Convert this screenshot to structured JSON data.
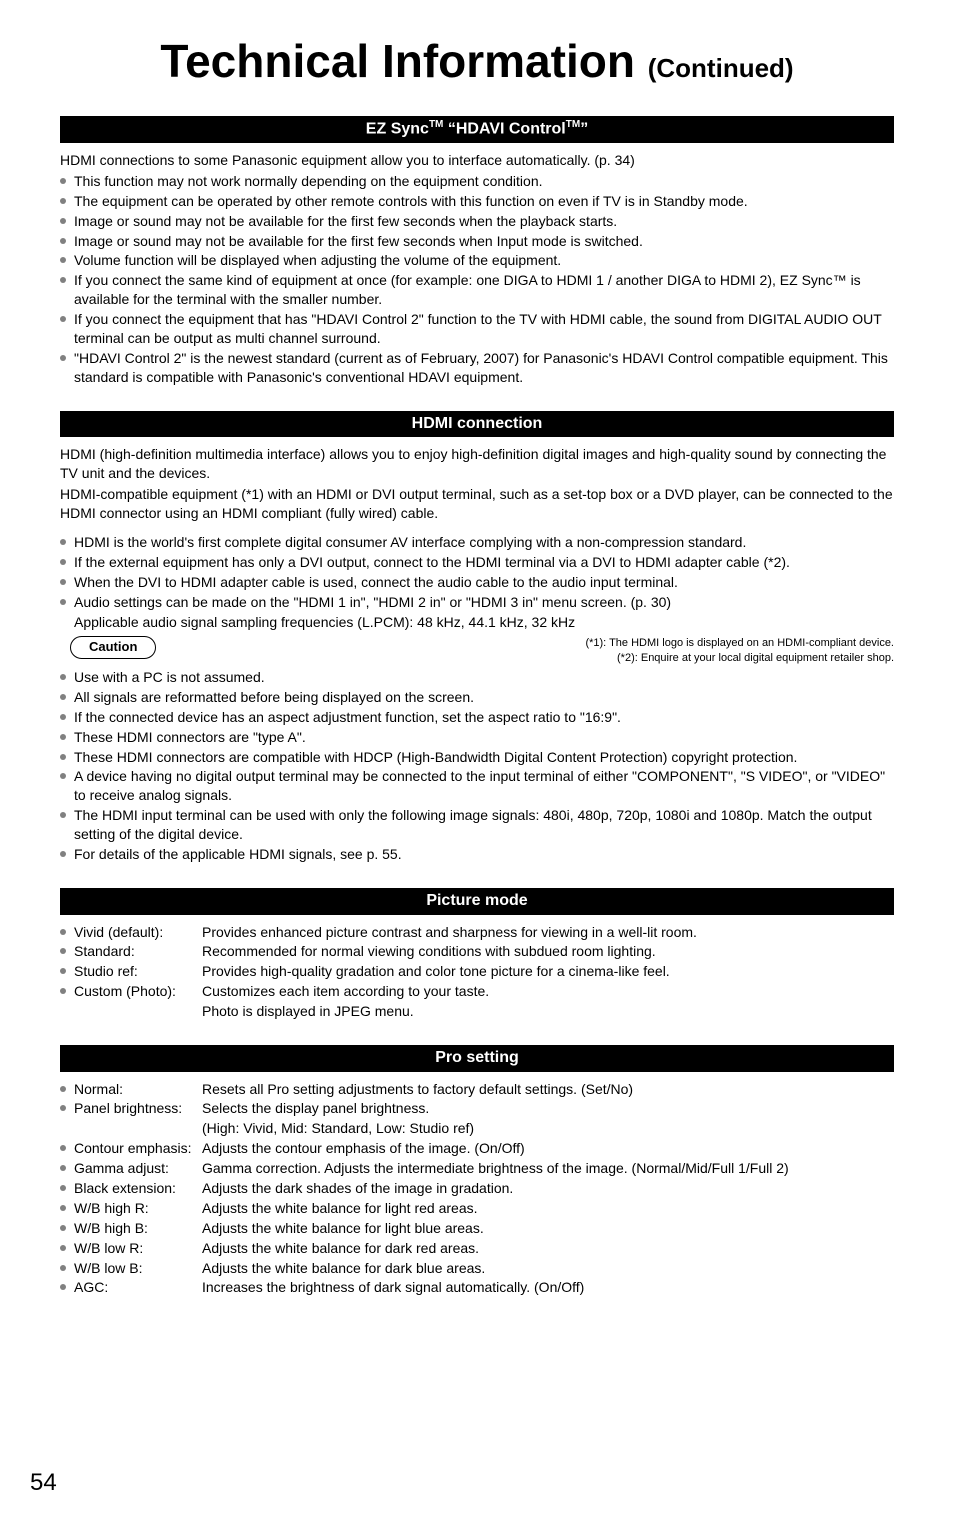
{
  "title_main": "Technical Information",
  "title_cont": "(Continued)",
  "page_number": "54",
  "sections": {
    "ezsync": {
      "heading": "EZ Sync™ \"HDAVI Control™\"",
      "intro": "HDMI connections to some Panasonic equipment allow you to interface automatically. (p. 34)",
      "bullets": [
        "This function may not work normally depending on the equipment condition.",
        "The equipment can be operated by other remote controls with this function on even if TV is in Standby mode.",
        "Image or sound may not be available for the first few seconds when the playback starts.",
        "Image or sound may not be available for the first few seconds when Input mode is switched.",
        "Volume function will be displayed when adjusting the volume of the equipment.",
        "If you connect the same kind of equipment at once (for example:  one DIGA to HDMI 1 / another DIGA to HDMI 2), EZ Sync™ is available for the terminal with the smaller number.",
        "If you connect the equipment that has \"HDAVI Control 2\" function to the TV with HDMI cable, the sound from DIGITAL AUDIO OUT terminal can be output as multi channel surround.",
        "\"HDAVI Control 2\" is the newest standard (current as of February, 2007) for Panasonic's HDAVI Control compatible equipment. This standard is compatible with Panasonic's conventional HDAVI equipment."
      ]
    },
    "hdmi": {
      "heading": "HDMI connection",
      "intro1": "HDMI (high-definition multimedia interface) allows you to enjoy high-definition digital images and high-quality sound by connecting the TV unit and the devices.",
      "intro2": "HDMI-compatible equipment (*1) with an HDMI or DVI output terminal, such as a set-top box or a DVD player, can be connected to the HDMI connector using an HDMI compliant (fully wired) cable.",
      "bullets1": [
        "HDMI is the world's first complete digital consumer AV interface complying with a non-compression standard.",
        "If the external equipment has only a DVI output, connect to the HDMI terminal via a DVI to HDMI adapter cable (*2).",
        "When the DVI to HDMI adapter cable is used, connect the audio cable to the audio input terminal.",
        "Audio settings can be made on the \"HDMI 1 in\", \"HDMI 2 in\" or \"HDMI 3 in\" menu screen. (p. 30)"
      ],
      "audio_freq": "Applicable audio signal sampling frequencies (L.PCM):  48 kHz, 44.1 kHz, 32 kHz",
      "footnote1": "(*1):  The HDMI logo is displayed on an HDMI-compliant device.",
      "footnote2": "(*2):  Enquire at your local digital equipment retailer shop.",
      "caution_label": "Caution",
      "bullets2": [
        "Use with a PC is not assumed.",
        "All signals are reformatted before being displayed on the screen.",
        "If the connected device has an aspect adjustment function, set the aspect ratio to \"16:9\".",
        "These HDMI connectors are \"type A\".",
        "These HDMI connectors are compatible with HDCP (High-Bandwidth Digital Content Protection) copyright protection.",
        "A device having no digital output terminal may be connected to the input terminal of either \"COMPONENT\", \"S VIDEO\", or \"VIDEO\" to receive analog signals.",
        "The HDMI input terminal can be used with only the following image signals:  480i, 480p, 720p, 1080i and 1080p. Match the output setting of the digital device.",
        "For details of the applicable HDMI signals, see p. 55."
      ]
    },
    "picture": {
      "heading": "Picture mode",
      "items": [
        {
          "key": "Vivid (default):",
          "val": "Provides enhanced picture contrast and sharpness for viewing in a well-lit room."
        },
        {
          "key": "Standard:",
          "val": "Recommended for normal viewing conditions with subdued room lighting."
        },
        {
          "key": "Studio ref:",
          "val": "Provides high-quality gradation and color tone picture for a cinema-like feel."
        },
        {
          "key": "Custom (Photo):",
          "val": "Customizes each item according to your taste."
        }
      ],
      "extra_line": "Photo is displayed in JPEG menu."
    },
    "pro": {
      "heading": "Pro setting",
      "items": [
        {
          "key": "Normal:",
          "val": "Resets all Pro setting adjustments to factory default settings. (Set/No)"
        },
        {
          "key": "Panel brightness:",
          "val": "Selects the display panel brightness."
        },
        {
          "key": "",
          "val": "(High:  Vivid, Mid:  Standard, Low:  Studio ref)",
          "nobullet": true
        },
        {
          "key": "Contour emphasis:",
          "val": "Adjusts the contour emphasis of the image. (On/Off)"
        },
        {
          "key": "Gamma adjust:",
          "val": "Gamma correction. Adjusts the intermediate brightness of the image. (Normal/Mid/Full 1/Full 2)"
        },
        {
          "key": "Black extension:",
          "val": "Adjusts the dark shades of the image in gradation."
        },
        {
          "key": "W/B high R:",
          "val": "Adjusts the white balance for light red areas."
        },
        {
          "key": "W/B high B:",
          "val": "Adjusts the white balance for light blue areas."
        },
        {
          "key": "W/B low R:",
          "val": "Adjusts the white balance for dark red areas."
        },
        {
          "key": "W/B low B:",
          "val": "Adjusts the white balance for dark blue areas."
        },
        {
          "key": "AGC:",
          "val": "Increases the brightness of dark signal automatically. (On/Off)"
        }
      ]
    }
  }
}
